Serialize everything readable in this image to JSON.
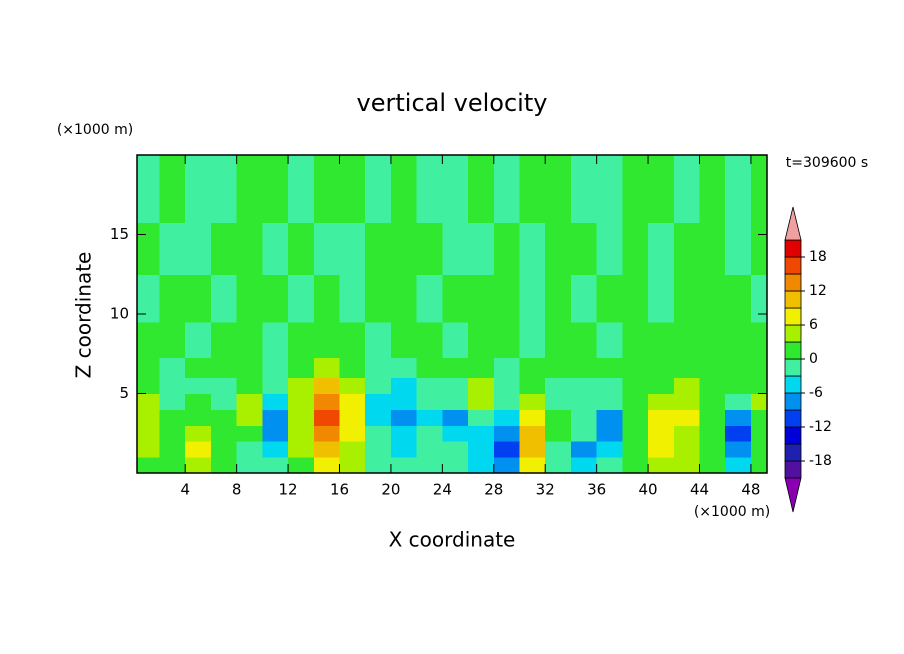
{
  "chart_data": {
    "type": "contour",
    "title": "vertical velocity",
    "xlabel": "X coordinate",
    "ylabel": "Z coordinate",
    "x_unit_label": "(×1000 m)",
    "y_unit_label": "(×1000 m)",
    "time_label": "t=309600 s",
    "xlim": [
      0.25,
      49.25
    ],
    "ylim": [
      0,
      20
    ],
    "xticks": [
      4,
      8,
      12,
      16,
      20,
      24,
      28,
      32,
      36,
      40,
      44,
      48
    ],
    "yticks": [
      5,
      10,
      15
    ],
    "x": [
      1,
      3,
      5,
      7,
      9,
      11,
      13,
      15,
      17,
      19,
      21,
      23,
      25,
      27,
      29,
      31,
      33,
      35,
      37,
      39,
      41,
      43,
      45,
      47,
      49
    ],
    "y": [
      0.5,
      1.5,
      2.5,
      3.5,
      4.5,
      5.5,
      6.5,
      8,
      11,
      14,
      17.5
    ],
    "z": [
      [
        2,
        1,
        5,
        2,
        -1,
        -2,
        1,
        6,
        3,
        -2,
        -3,
        -2,
        -1,
        -4,
        -8,
        6,
        -2,
        -6,
        -3,
        1,
        4,
        3,
        1,
        -5,
        2
      ],
      [
        3,
        2,
        6,
        2,
        -2,
        -4,
        3,
        10,
        5,
        -3,
        -4,
        -3,
        -2,
        -6,
        -11,
        9,
        -1,
        -7,
        -4,
        2,
        6,
        4,
        2,
        -9,
        2
      ],
      [
        4,
        1,
        3,
        1,
        1,
        -7,
        4,
        13,
        7,
        -3,
        -5,
        -3,
        -6,
        -4,
        -9,
        10,
        0,
        -3,
        -8,
        1,
        8,
        5,
        1,
        -11,
        1
      ],
      [
        5,
        0,
        1,
        0,
        5,
        -8,
        5,
        15,
        8,
        -5,
        -8,
        -4,
        -8,
        -2,
        -4,
        8,
        1,
        -2,
        -8,
        1,
        7,
        6,
        1,
        -7,
        2
      ],
      [
        4,
        -1,
        0,
        -1,
        5,
        -5,
        5,
        14,
        7,
        -4,
        -6,
        -3,
        -3,
        5,
        -2,
        5,
        -1,
        -1,
        -3,
        1,
        4,
        5,
        2,
        -3,
        3
      ],
      [
        1,
        -2,
        -1,
        -2,
        1,
        -3,
        3,
        9,
        5,
        -3,
        -4,
        -2,
        -1,
        3,
        -1,
        2,
        -1,
        -1,
        -1,
        1,
        2,
        3,
        1,
        1,
        2
      ],
      [
        0,
        -1,
        1,
        0,
        2,
        -1,
        1,
        4,
        2,
        -2,
        -2,
        0,
        1,
        2,
        -1,
        1,
        0,
        1,
        0,
        1,
        1,
        1,
        1,
        2,
        1
      ],
      [
        1,
        2,
        -1,
        2,
        1,
        -1,
        2,
        1,
        2,
        -1,
        1,
        2,
        -1,
        1,
        2,
        -1,
        1,
        1,
        -1,
        1,
        2,
        1,
        1,
        2,
        1
      ],
      [
        -1,
        1,
        1,
        -1,
        2,
        1,
        -1,
        1,
        -1,
        1,
        2,
        -1,
        1,
        2,
        1,
        -1,
        1,
        -1,
        1,
        1,
        -1,
        1,
        2,
        1,
        -1
      ],
      [
        1,
        -1,
        -1,
        1,
        2,
        -1,
        1,
        -1,
        -1,
        1,
        1,
        2,
        -1,
        -1,
        1,
        -1,
        1,
        2,
        -1,
        1,
        -1,
        1,
        1,
        -1,
        1
      ],
      [
        -1,
        1,
        -1,
        -1,
        1,
        1,
        -1,
        1,
        1,
        -1,
        1,
        -1,
        -1,
        1,
        -1,
        1,
        1,
        -1,
        -1,
        1,
        1,
        -1,
        1,
        -1,
        1
      ]
    ],
    "levels": [
      -21,
      -18,
      -15,
      -12,
      -9,
      -6,
      -3,
      0,
      3,
      6,
      9,
      12,
      15,
      18,
      21
    ],
    "colors": [
      "#8a00b0",
      "#5010a0",
      "#2020b0",
      "#0000d8",
      "#0040f0",
      "#0090f0",
      "#00d8f0",
      "#40f0a0",
      "#30e830",
      "#a8f000",
      "#f0f000",
      "#f0c000",
      "#f08800",
      "#f04800",
      "#e00000",
      "#f0a0a0"
    ],
    "colorbar_ticks": [
      -18,
      -12,
      -6,
      0,
      6,
      12,
      18
    ]
  }
}
